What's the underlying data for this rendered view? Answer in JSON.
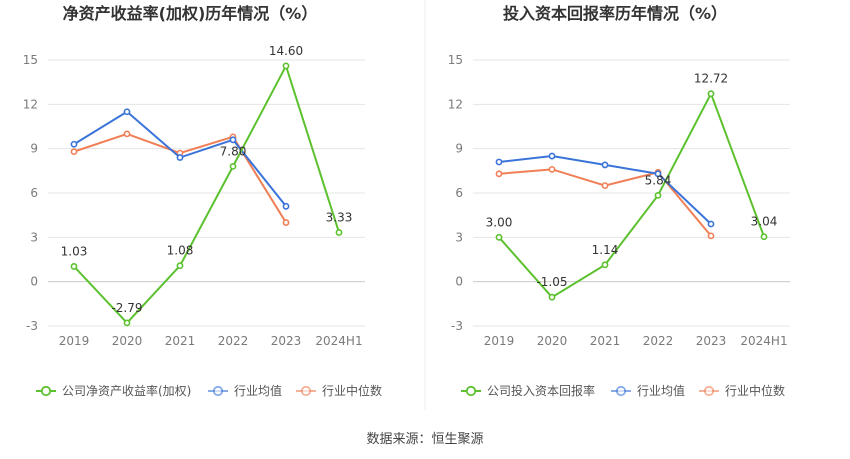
{
  "colors": {
    "company": "#5cc12e",
    "industry_avg": "#3a74d9",
    "industry_median": "#f07f56",
    "grid": "#e4e4e4",
    "tick": "#7a7a7a",
    "title": "#333333"
  },
  "source_text": "数据来源：恒生聚源",
  "chart_data": [
    {
      "type": "line",
      "title": "净资产收益率(加权)历年情况（%）",
      "categories": [
        "2019",
        "2020",
        "2021",
        "2022",
        "2023",
        "2024H1"
      ],
      "ylim": [
        -3,
        15
      ],
      "yticks": [
        "15",
        "12",
        "9",
        "6",
        "3",
        "0",
        "-3"
      ],
      "grid": true,
      "legend_position": "bottom-left",
      "series": [
        {
          "name": "公司净资产收益率(加权)",
          "color_key": "company",
          "values": [
            1.03,
            -2.79,
            1.08,
            7.8,
            14.6,
            3.33
          ],
          "labels": [
            "1.03",
            "-2.79",
            "1.08",
            "7.80",
            "14.60",
            "3.33"
          ]
        },
        {
          "name": "行业均值",
          "color_key": "industry_avg",
          "values": [
            9.3,
            11.5,
            8.4,
            9.6,
            5.1,
            null
          ]
        },
        {
          "name": "行业中位数",
          "color_key": "industry_median",
          "values": [
            8.8,
            10.0,
            8.7,
            9.8,
            4.0,
            null
          ]
        }
      ]
    },
    {
      "type": "line",
      "title": "投入资本回报率历年情况（%）",
      "categories": [
        "2019",
        "2020",
        "2021",
        "2022",
        "2023",
        "2024H1"
      ],
      "ylim": [
        -3,
        15
      ],
      "yticks": [
        "15",
        "12",
        "9",
        "6",
        "3",
        "0",
        "-3"
      ],
      "grid": true,
      "legend_position": "bottom-left",
      "series": [
        {
          "name": "公司投入资本回报率",
          "color_key": "company",
          "values": [
            3.0,
            -1.05,
            1.14,
            5.84,
            12.72,
            3.04
          ],
          "labels": [
            "3.00",
            "-1.05",
            "1.14",
            "5.84",
            "12.72",
            "3.04"
          ]
        },
        {
          "name": "行业均值",
          "color_key": "industry_avg",
          "values": [
            8.1,
            8.5,
            7.9,
            7.3,
            3.9,
            null
          ]
        },
        {
          "name": "行业中位数",
          "color_key": "industry_median",
          "values": [
            7.3,
            7.6,
            6.5,
            7.4,
            3.1,
            null
          ]
        }
      ]
    }
  ]
}
